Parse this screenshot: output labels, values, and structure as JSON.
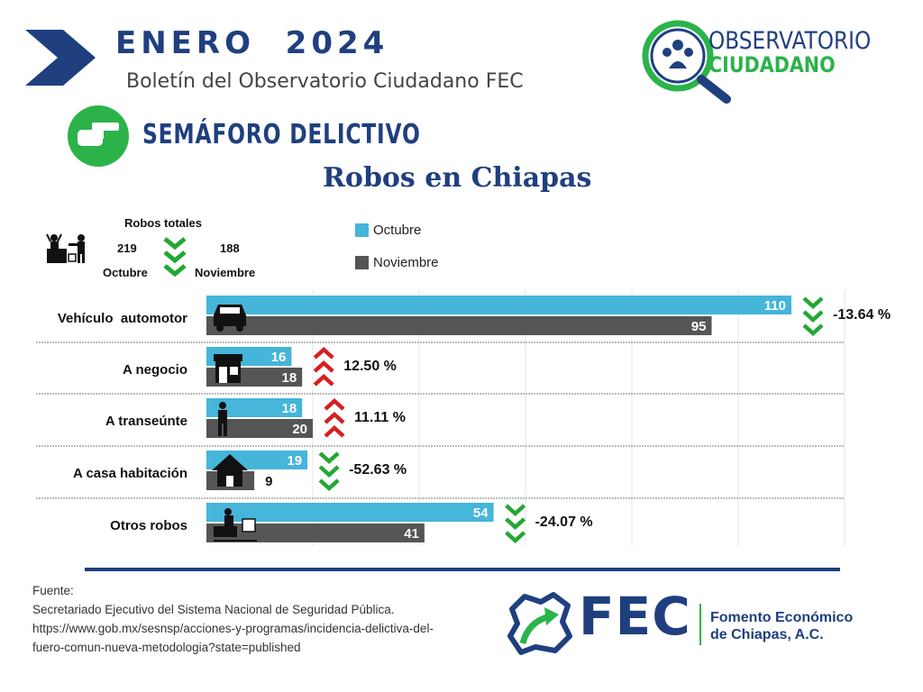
{
  "header": {
    "month_title": "ENERO  2024",
    "subtitle": "Boletín del Observatorio Ciudadano FEC",
    "section_title": "SEMÁFORO DELICTIVO",
    "chart_title": "Robos en Chiapas"
  },
  "logo_observatorio": {
    "line1": "OBSERVATORIO",
    "line2": "CIUDADANO"
  },
  "totals": {
    "label": "Robos totales",
    "octubre_value": "219",
    "noviembre_value": "188",
    "octubre_label": "Octubre",
    "noviembre_label": "Noviembre"
  },
  "colors": {
    "octubre": "#45b5d9",
    "noviembre": "#555555",
    "down": "#22a832",
    "up": "#d42020",
    "brand": "#1f3f7f"
  },
  "chart_data": {
    "type": "bar",
    "orientation": "horizontal",
    "title": "Robos en Chiapas",
    "categories": [
      "Vehículo  automotor",
      "A negocio",
      "A transeúnte",
      "A casa habitación",
      "Otros robos"
    ],
    "series": [
      {
        "name": "Octubre",
        "values": [
          110,
          16,
          18,
          19,
          54
        ]
      },
      {
        "name": "Noviembre",
        "values": [
          95,
          18,
          20,
          9,
          41
        ]
      }
    ],
    "changes": [
      "-13.64 %",
      "12.50 %",
      "11.11 %",
      "-52.63 %",
      "-24.07 %"
    ],
    "trend": [
      "down",
      "up",
      "up",
      "down",
      "down"
    ],
    "category_icons": [
      "car-icon",
      "store-icon",
      "pedestrian-icon",
      "house-icon",
      "robbery-icon"
    ],
    "xlim": [
      0,
      120
    ],
    "grid": true,
    "legend": "top"
  },
  "source": {
    "label": "Fuente:",
    "line1": "Secretariado Ejecutivo del Sistema Nacional de Seguridad Pública.",
    "line2": "https://www.gob.mx/sesnsp/acciones-y-programas/incidencia-delictiva-del-",
    "line3": "fuero-comun-nueva-metodologia?state=published"
  },
  "fec": {
    "acronym": "FEC",
    "name_line1": "Fomento Económico",
    "name_line2": "de Chiapas, A.C."
  }
}
